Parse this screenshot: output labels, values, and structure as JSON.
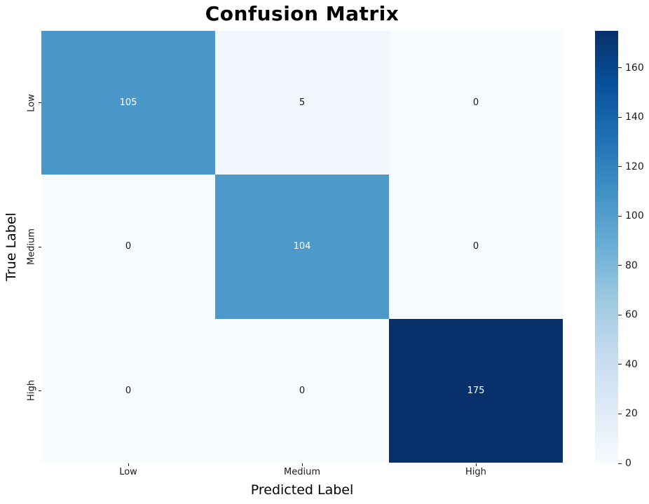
{
  "chart_data": {
    "type": "heatmap",
    "title": "Confusion Matrix",
    "xlabel": "Predicted Label",
    "ylabel": "True Label",
    "x_tick_labels": [
      "Low",
      "Medium",
      "High"
    ],
    "y_tick_labels": [
      "Low",
      "Medium",
      "High"
    ],
    "matrix": [
      [
        105,
        5,
        0
      ],
      [
        0,
        104,
        0
      ],
      [
        0,
        0,
        175
      ]
    ],
    "vmin": 0,
    "vmax": 175,
    "colormap": "Blues",
    "colorbar_ticks": [
      0,
      20,
      40,
      60,
      80,
      100,
      120,
      140,
      160
    ],
    "annotations_shown": true,
    "grid": false,
    "legend_position": "right-colorbar",
    "colors": {
      "colormap_min": "#f7fbff",
      "colormap_max": "#08306b",
      "annotation_on_dark": "#ffffff",
      "annotation_on_light": "#15191f",
      "axis_text": "#1a1a1a",
      "title_text": "#000000"
    }
  }
}
